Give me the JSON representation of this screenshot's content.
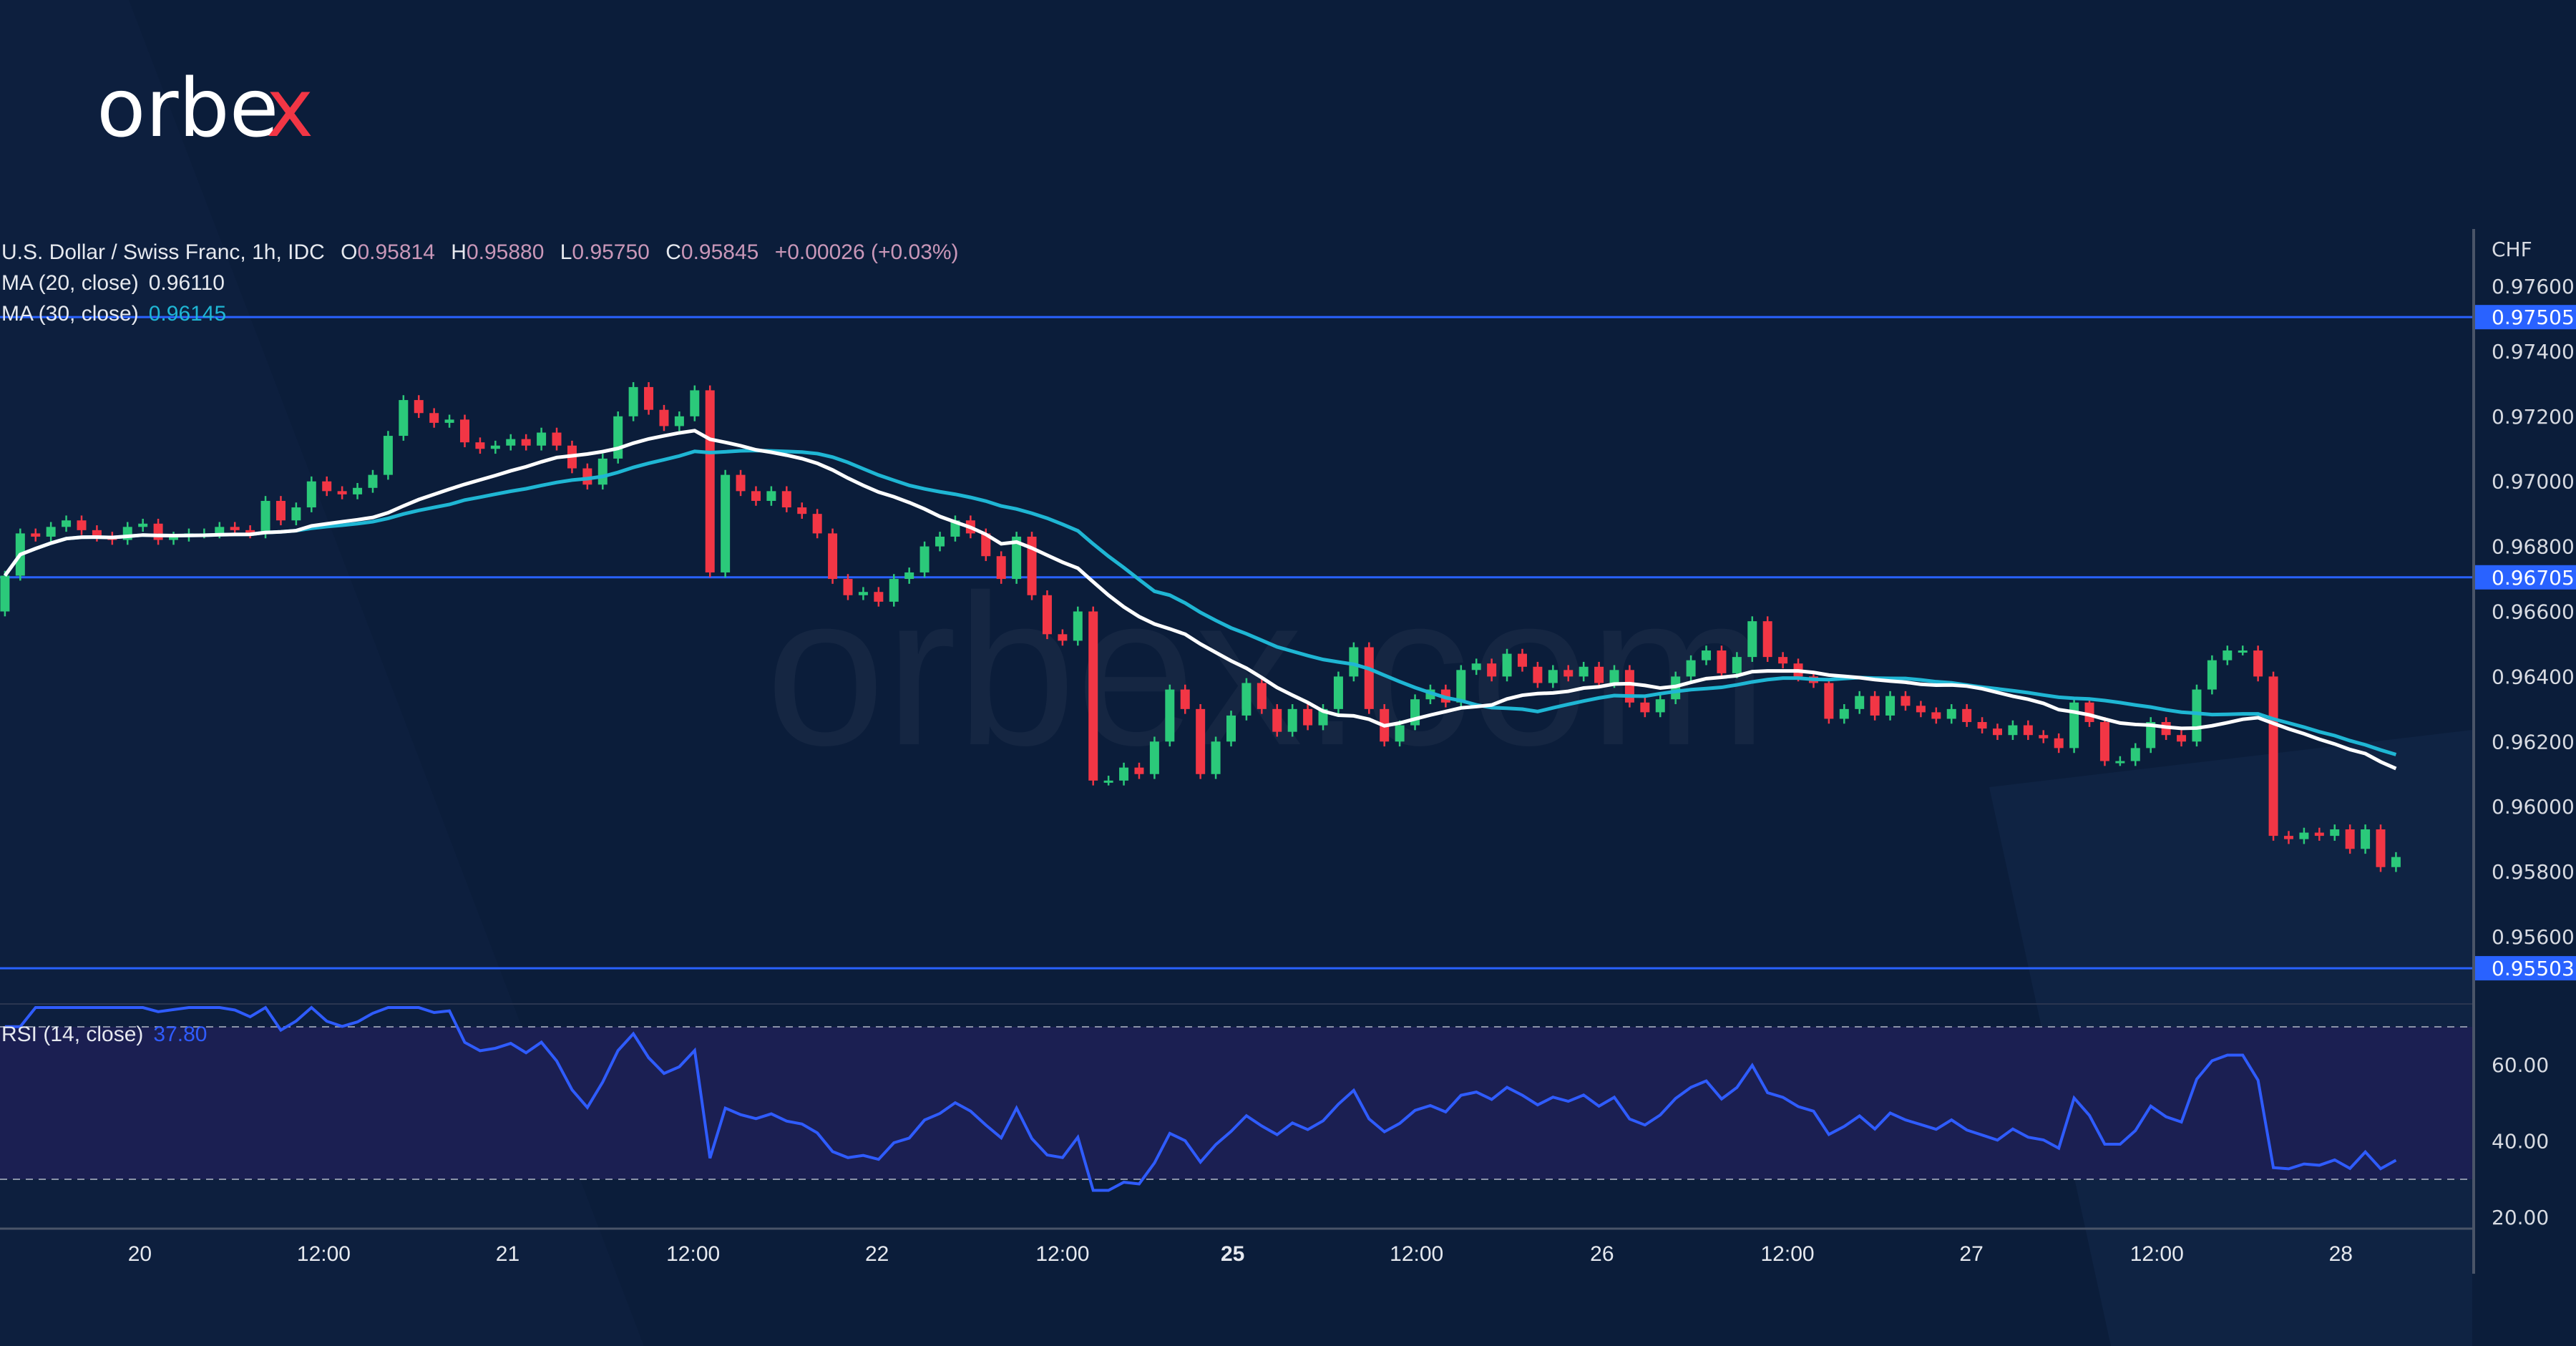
{
  "logo": {
    "text_main": "orbe",
    "text_x": "x"
  },
  "watermark": "orbex.com",
  "legend": {
    "title": "U.S. Dollar / Swiss Franc, 1h, IDC",
    "o_label": "O",
    "o_value": "0.95814",
    "h_label": "H",
    "h_value": "0.95880",
    "l_label": "L",
    "l_value": "0.95750",
    "c_label": "C",
    "c_value": "0.95845",
    "change": "+0.00026 (+0.03%)",
    "ma20_label": "MA (20, close)",
    "ma20_value": "0.96110",
    "ma30_label": "MA (30, close)",
    "ma30_value": "0.96145",
    "rsi_label": "RSI (14, close)",
    "rsi_value": "37.80"
  },
  "colors": {
    "bg": "#0b1d3a",
    "up": "#2bc97a",
    "down": "#f23645",
    "ma20": "#ffffff",
    "ma30": "#1fb6d4",
    "rsi": "#2f5cff",
    "level": "#2962ff",
    "rsi_band": "#1b1f52"
  },
  "chart_data": {
    "type": "candlestick",
    "symbol": "USD/CHF",
    "interval": "1h",
    "currency_label": "CHF",
    "ylim": [
      0.9551,
      0.9767
    ],
    "yticks": [
      "0.97600",
      "0.97400",
      "0.97200",
      "0.97000",
      "0.96800",
      "0.96600",
      "0.96400",
      "0.96200",
      "0.96000",
      "0.95800",
      "0.95600"
    ],
    "ytick_values": [
      0.976,
      0.974,
      0.972,
      0.97,
      0.968,
      0.966,
      0.964,
      0.962,
      0.96,
      0.958,
      0.956
    ],
    "levels": [
      {
        "value": 0.97505,
        "label": "0.97505"
      },
      {
        "value": 0.96705,
        "label": "0.96705"
      },
      {
        "value": 0.95503,
        "label": "0.95503"
      }
    ],
    "xticks": [
      {
        "label": "20",
        "hour": 8.8
      },
      {
        "label": "12:00",
        "hour": 20.8
      },
      {
        "label": "21",
        "hour": 32.8
      },
      {
        "label": "12:00",
        "hour": 44.9
      },
      {
        "label": "22",
        "hour": 56.9
      },
      {
        "label": "12:00",
        "hour": 69.0
      },
      {
        "label": "25",
        "hour": 80.1,
        "bold": true
      },
      {
        "label": "12:00",
        "hour": 92.1
      },
      {
        "label": "26",
        "hour": 104.2
      },
      {
        "label": "12:00",
        "hour": 116.3
      },
      {
        "label": "27",
        "hour": 128.3
      },
      {
        "label": "12:00",
        "hour": 140.4
      },
      {
        "label": "28",
        "hour": 152.4
      }
    ],
    "wick": 0.00015,
    "first_open": 0.966,
    "close": [
      0.9671,
      0.9684,
      0.9683,
      0.9686,
      0.9688,
      0.9685,
      0.9683,
      0.9682,
      0.9686,
      0.9687,
      0.9682,
      0.9683,
      0.9684,
      0.9684,
      0.9686,
      0.9685,
      0.9684,
      0.9694,
      0.9688,
      0.9692,
      0.97,
      0.9697,
      0.9696,
      0.9698,
      0.9702,
      0.9714,
      0.9725,
      0.9721,
      0.9718,
      0.9719,
      0.9712,
      0.971,
      0.9711,
      0.9713,
      0.9711,
      0.9715,
      0.9711,
      0.9704,
      0.9699,
      0.9707,
      0.972,
      0.9729,
      0.9722,
      0.9717,
      0.972,
      0.9728,
      0.9672,
      0.9702,
      0.9697,
      0.9694,
      0.9697,
      0.9692,
      0.969,
      0.9684,
      0.967,
      0.9665,
      0.9666,
      0.9663,
      0.967,
      0.9672,
      0.968,
      0.9683,
      0.9688,
      0.9684,
      0.9677,
      0.967,
      0.9683,
      0.9665,
      0.9653,
      0.9651,
      0.966,
      0.9608,
      0.9608,
      0.9612,
      0.961,
      0.962,
      0.9636,
      0.963,
      0.961,
      0.962,
      0.9628,
      0.9638,
      0.963,
      0.9623,
      0.963,
      0.9625,
      0.963,
      0.964,
      0.9649,
      0.963,
      0.962,
      0.9625,
      0.9633,
      0.9636,
      0.9632,
      0.9642,
      0.9644,
      0.964,
      0.9647,
      0.9643,
      0.9638,
      0.9642,
      0.964,
      0.9643,
      0.9638,
      0.9642,
      0.9632,
      0.9629,
      0.9633,
      0.964,
      0.9645,
      0.9648,
      0.9641,
      0.9646,
      0.9657,
      0.9646,
      0.9644,
      0.964,
      0.9638,
      0.9627,
      0.963,
      0.9634,
      0.9628,
      0.9634,
      0.9631,
      0.9629,
      0.9627,
      0.963,
      0.9626,
      0.9624,
      0.9622,
      0.9625,
      0.9622,
      0.9621,
      0.9618,
      0.9632,
      0.9626,
      0.9614,
      0.9614,
      0.9618,
      0.9626,
      0.9622,
      0.962,
      0.9636,
      0.9645,
      0.9648,
      0.9648,
      0.964,
      0.9591,
      0.959,
      0.9592,
      0.9591,
      0.9593,
      0.9587,
      0.9593,
      0.95814,
      0.95845
    ],
    "rsi": {
      "period": 14,
      "levels": [
        70,
        30
      ],
      "ylim": [
        15,
        75
      ],
      "yticks": [
        "60.00",
        "40.00",
        "20.00"
      ],
      "ytick_values": [
        60,
        40,
        20
      ]
    }
  }
}
